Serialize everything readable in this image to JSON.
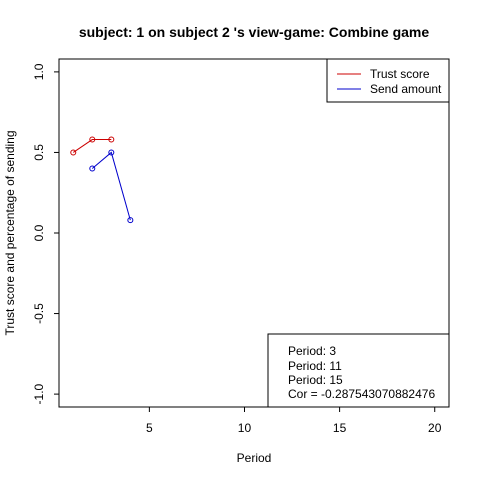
{
  "chart_data": {
    "type": "line",
    "title": "subject:  1  on subject  2 's view-game:  Combine game",
    "xlabel": "Period",
    "ylabel": "Trust score and percentage of sending",
    "xlim": [
      0.25,
      20.75
    ],
    "ylim": [
      -1.08,
      1.08
    ],
    "x_ticks": [
      5,
      10,
      15,
      20
    ],
    "y_ticks": [
      -1.0,
      -0.5,
      0.0,
      0.5,
      1.0
    ],
    "y_tick_labels": [
      "-1.0",
      "-0.5",
      "0.0",
      "0.5",
      "1.0"
    ],
    "grid": false,
    "legend_position": "top-right",
    "series": [
      {
        "name": "Trust score",
        "color": "#cc0000",
        "x": [
          1,
          2,
          3
        ],
        "values": [
          0.5,
          0.58,
          0.58
        ]
      },
      {
        "name": "Send amount",
        "color": "#0000cc",
        "x": [
          2,
          3,
          4
        ],
        "values": [
          0.4,
          0.5,
          0.08
        ]
      }
    ],
    "annotation_lines": [
      "Period:  3",
      "Period:  11",
      "Period:  15",
      "Cor =  -0.287543070882476"
    ]
  }
}
